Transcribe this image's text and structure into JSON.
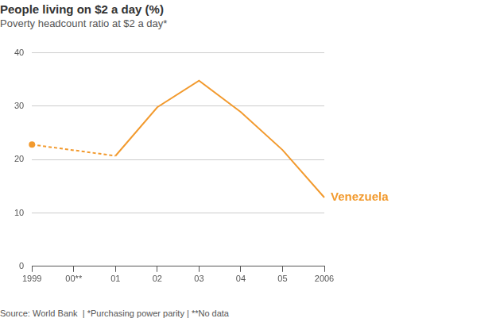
{
  "chart_data": {
    "type": "line",
    "title": "People living on $2 a day (%)",
    "subtitle": "Poverty headcount ratio at $2 a day*",
    "footnote": "Source: World Bank  | *Purchasing power parity | **No data",
    "categories": [
      "1999",
      "00**",
      "01",
      "02",
      "03",
      "04",
      "05",
      "2006"
    ],
    "series": [
      {
        "name": "Venezuela",
        "color": "#f29a2e",
        "values": [
          22.8,
          null,
          20.7,
          29.8,
          34.8,
          28.9,
          21.8,
          12.9
        ]
      }
    ],
    "ylim": [
      0,
      40
    ],
    "yticks": [
      0,
      10,
      20,
      30,
      40
    ],
    "grid": true
  }
}
